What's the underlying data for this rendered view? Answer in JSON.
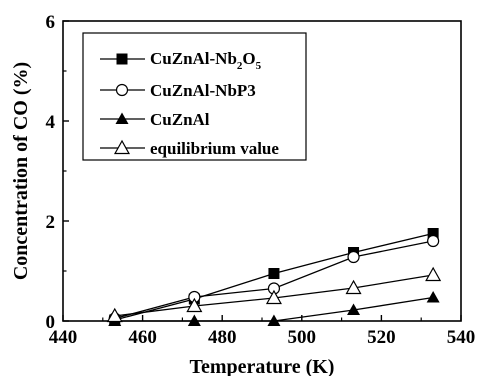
{
  "chart_data": {
    "type": "line",
    "xlabel": "Temperature (K)",
    "ylabel": "Concentration of CO (%)",
    "xlim": [
      440,
      540
    ],
    "ylim": [
      0,
      6
    ],
    "xticks": [
      "440",
      "460",
      "480",
      "500",
      "520",
      "540"
    ],
    "yticks": [
      "0",
      "2",
      "4",
      "6"
    ],
    "grid": false,
    "legend_position": "top-left",
    "series": [
      {
        "name": "CuZnAl-Nb2O5",
        "name_main": "CuZnAl-Nb",
        "name_sub1": "2",
        "name_mid": "O",
        "name_sub2": "5",
        "marker": "filled-square",
        "x": [
          453,
          473,
          493,
          513,
          533
        ],
        "y": [
          0.02,
          0.44,
          0.95,
          1.37,
          1.75
        ]
      },
      {
        "name": "CuZnAl-NbP3",
        "marker": "open-circle",
        "x": [
          453,
          473,
          493,
          513,
          533
        ],
        "y": [
          0.05,
          0.48,
          0.65,
          1.28,
          1.6
        ]
      },
      {
        "name": "CuZnAl",
        "marker": "filled-triangle",
        "x": [
          453,
          473,
          493,
          513,
          533
        ],
        "y": [
          0.0,
          0.0,
          0.0,
          0.22,
          0.47
        ]
      },
      {
        "name": "equilibrium value",
        "marker": "open-triangle",
        "x": [
          453,
          473,
          493,
          513,
          533
        ],
        "y": [
          0.1,
          0.3,
          0.46,
          0.66,
          0.92
        ]
      }
    ]
  }
}
